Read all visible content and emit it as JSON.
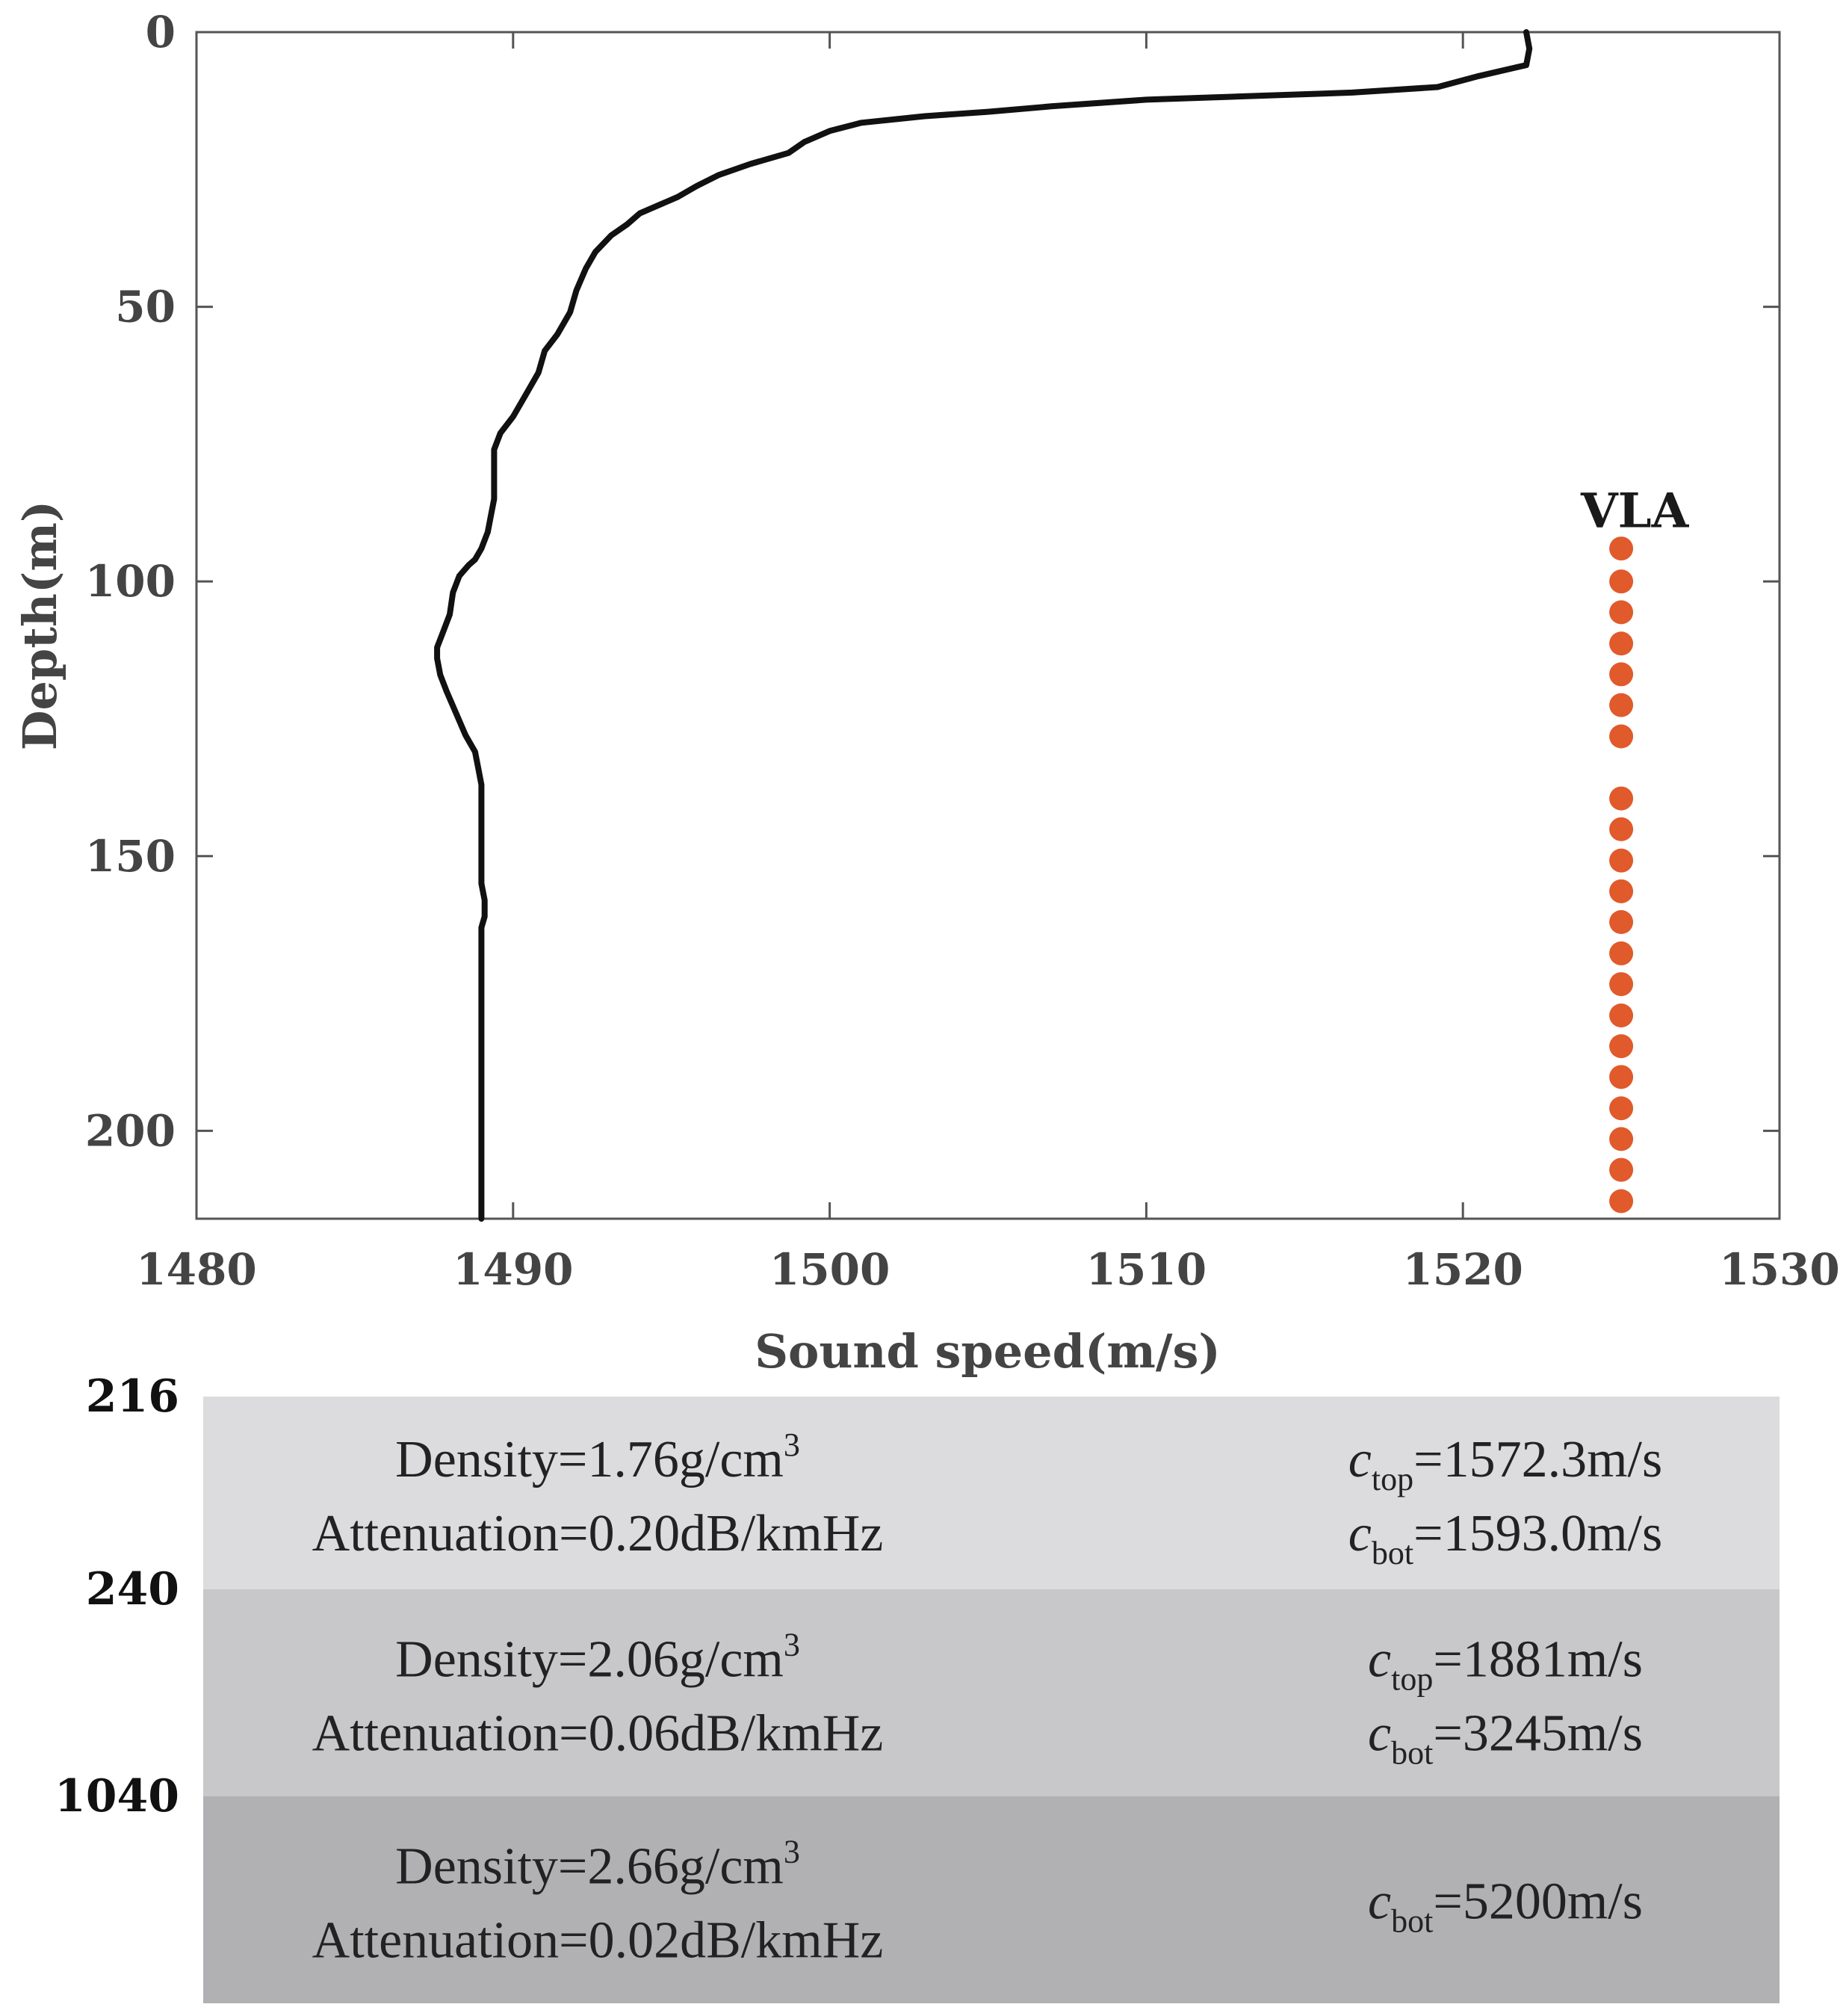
{
  "chart_data": {
    "type": "line",
    "title": "",
    "xlabel": "Sound speed(m/s)",
    "ylabel": "Depth(m)",
    "xlim": [
      1480,
      1530
    ],
    "ylim": [
      0,
      216
    ],
    "y_reversed": true,
    "x_ticks": [
      "1480",
      "1490",
      "1500",
      "1510",
      "1520",
      "1530"
    ],
    "y_ticks": [
      "0",
      "50",
      "100",
      "150",
      "200"
    ],
    "series": [
      {
        "name": "Sound speed profile",
        "color": "#111111",
        "points": [
          [
            1522.0,
            0
          ],
          [
            1522.1,
            3
          ],
          [
            1522.0,
            6
          ],
          [
            1520.5,
            8
          ],
          [
            1519.2,
            10
          ],
          [
            1516.5,
            11
          ],
          [
            1513.0,
            11.7
          ],
          [
            1510.0,
            12.3
          ],
          [
            1507.0,
            13.5
          ],
          [
            1505.0,
            14.5
          ],
          [
            1503.0,
            15.3
          ],
          [
            1501.0,
            16.5
          ],
          [
            1500.0,
            18
          ],
          [
            1499.2,
            20
          ],
          [
            1498.7,
            22
          ],
          [
            1497.5,
            24
          ],
          [
            1496.5,
            26
          ],
          [
            1495.8,
            28
          ],
          [
            1495.2,
            30
          ],
          [
            1494.6,
            31.5
          ],
          [
            1494.0,
            33
          ],
          [
            1493.6,
            35
          ],
          [
            1493.1,
            37
          ],
          [
            1492.6,
            40
          ],
          [
            1492.3,
            43
          ],
          [
            1492.0,
            47
          ],
          [
            1491.8,
            51
          ],
          [
            1491.4,
            55
          ],
          [
            1491.0,
            58
          ],
          [
            1490.8,
            62
          ],
          [
            1490.4,
            66
          ],
          [
            1490.0,
            70
          ],
          [
            1489.6,
            73
          ],
          [
            1489.4,
            76
          ],
          [
            1489.4,
            80
          ],
          [
            1489.4,
            85
          ],
          [
            1489.3,
            88
          ],
          [
            1489.2,
            91
          ],
          [
            1489.0,
            94
          ],
          [
            1488.8,
            96
          ],
          [
            1488.6,
            97
          ],
          [
            1488.3,
            99
          ],
          [
            1488.1,
            102
          ],
          [
            1488.0,
            106
          ],
          [
            1487.8,
            109
          ],
          [
            1487.6,
            112
          ],
          [
            1487.6,
            114
          ],
          [
            1487.7,
            117
          ],
          [
            1487.9,
            120
          ],
          [
            1488.2,
            124
          ],
          [
            1488.5,
            128
          ],
          [
            1488.8,
            131
          ],
          [
            1488.9,
            134
          ],
          [
            1489.0,
            137
          ],
          [
            1489.0,
            140
          ],
          [
            1489.0,
            145
          ],
          [
            1489.0,
            150
          ],
          [
            1489.0,
            155
          ],
          [
            1489.1,
            158
          ],
          [
            1489.1,
            161
          ],
          [
            1489.0,
            163
          ],
          [
            1489.0,
            170
          ],
          [
            1489.0,
            180
          ],
          [
            1489.0,
            190
          ],
          [
            1489.0,
            200
          ],
          [
            1489.0,
            210
          ],
          [
            1489.0,
            216
          ]
        ]
      },
      {
        "name": "VLA",
        "type": "scatter",
        "color": "#e05a2b",
        "x": 1525,
        "depths": [
          94,
          100,
          105.6,
          111.3,
          116.9,
          122.5,
          128.2,
          139.5,
          145.1,
          150.8,
          156.4,
          162.0,
          167.7,
          173.3,
          179.0,
          184.6,
          190.2,
          195.9,
          201.5,
          207.1,
          212.8
        ]
      }
    ],
    "annotations": [
      {
        "text": "VLA",
        "x": 1525,
        "y": 86
      }
    ]
  },
  "layers": [
    {
      "top_depth": "216",
      "color": "#dcdcde",
      "density_text": "Density=1.76g/cm",
      "density_sup": "3",
      "attenuation_text": "Attenuation=0.20dB/kmHz",
      "speeds": [
        {
          "c": "c",
          "sub": "top",
          "value": "=1572.3m/s"
        },
        {
          "c": "c",
          "sub": "bot",
          "value": "=1593.0m/s"
        }
      ]
    },
    {
      "top_depth": "240",
      "color": "#c8c8ca",
      "density_text": "Density=2.06g/cm",
      "density_sup": "3",
      "attenuation_text": "Attenuation=0.06dB/kmHz",
      "speeds": [
        {
          "c": "c",
          "sub": "top",
          "value": "=1881m/s"
        },
        {
          "c": "c",
          "sub": "bot",
          "value": "=3245m/s"
        }
      ]
    },
    {
      "top_depth": "1040",
      "color": "#b1b1b3",
      "density_text": "Density=2.66g/cm",
      "density_sup": "3",
      "attenuation_text": "Attenuation=0.02dB/kmHz",
      "speeds": [
        {
          "c": "c",
          "sub": "bot",
          "value": "=5200m/s"
        }
      ]
    }
  ]
}
